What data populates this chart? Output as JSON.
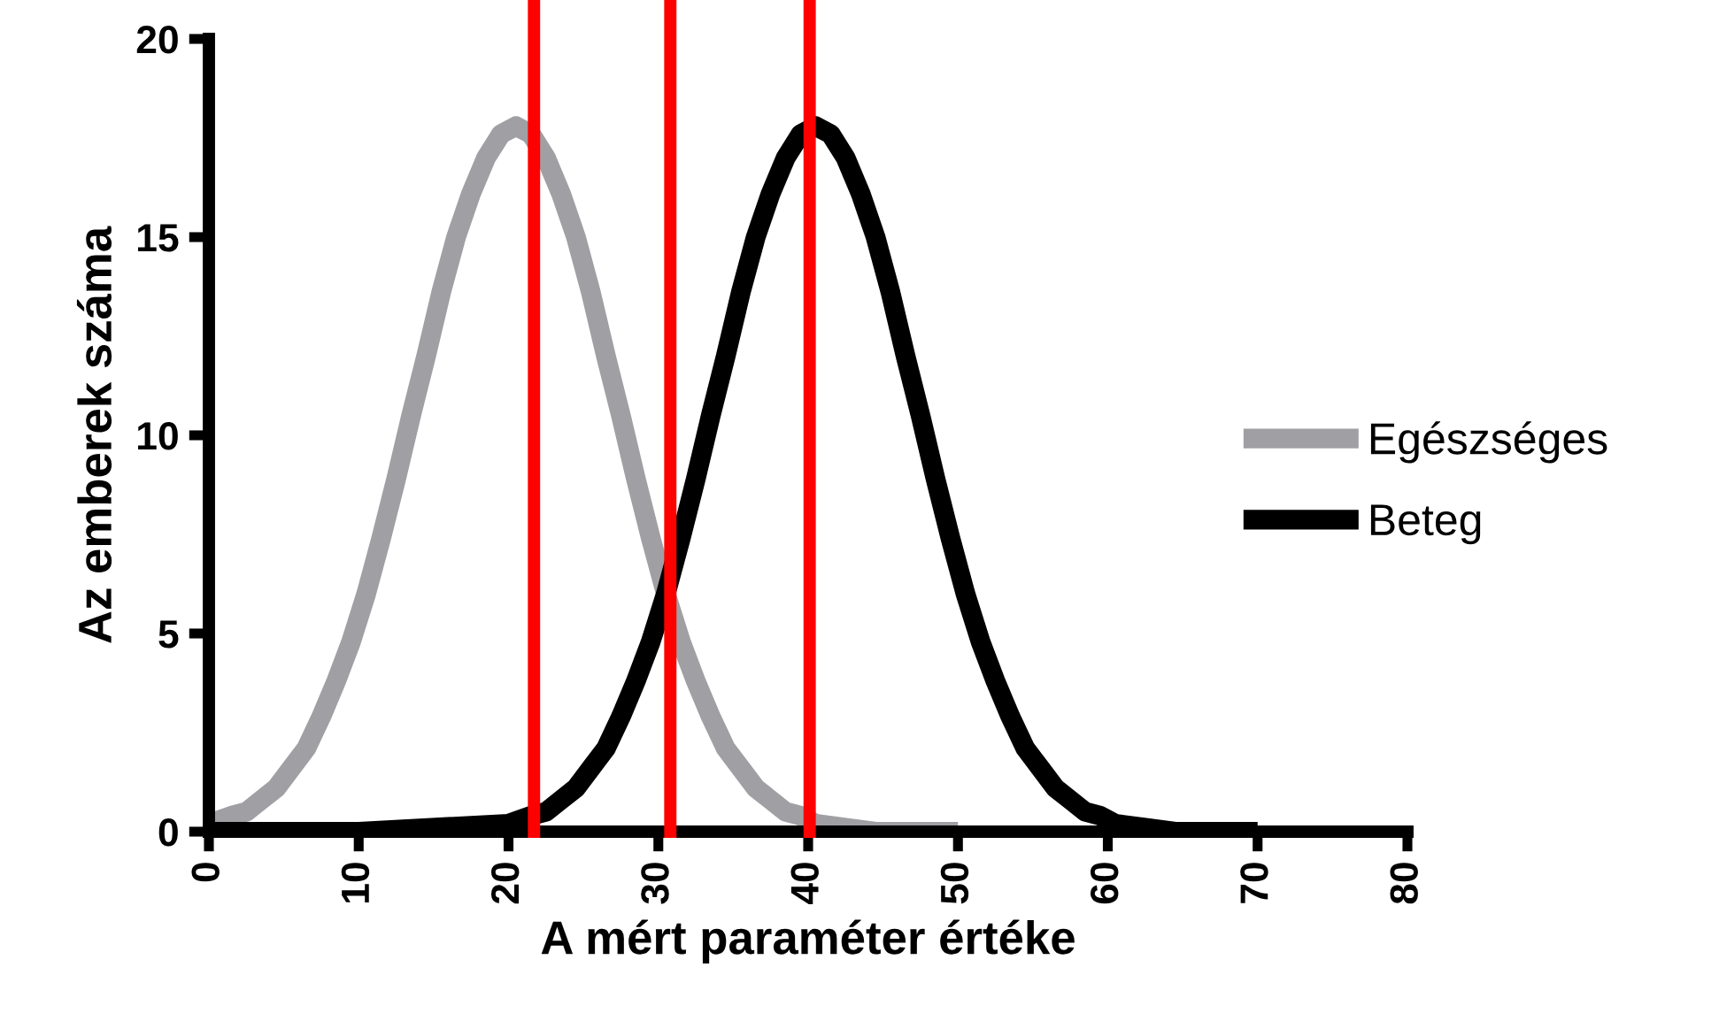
{
  "chart_data": {
    "type": "line",
    "xlabel": "A mért paraméter értéke",
    "ylabel": "Az emberek száma",
    "xlim": [
      0,
      80
    ],
    "xticks": [
      0,
      10,
      20,
      30,
      40,
      50,
      60,
      70,
      80
    ],
    "ylim": [
      0,
      20
    ],
    "yticks": [
      0,
      5,
      10,
      15,
      20
    ],
    "grid": false,
    "legend": "right",
    "marker": "none",
    "line_style": "solid",
    "series": [
      {
        "name": "Egészséges",
        "color": "#a0a0a4",
        "x": [
          0,
          1.5,
          2.5,
          3.5,
          4.5,
          5.5,
          6.5,
          7.5,
          8.5,
          9.5,
          10.5,
          11.5,
          12.5,
          13.5,
          14.5,
          15.5,
          16.5,
          17.5,
          18.5,
          19.5,
          20.5,
          21.5,
          22.5,
          23.5,
          24.5,
          25.5,
          26.5,
          27.5,
          28.5,
          29.5,
          30.5,
          31.5,
          32.5,
          33.5,
          34.5,
          35.5,
          36.5,
          37.5,
          38.5,
          39.5,
          40.5,
          42.5,
          44.5,
          46.5,
          48.5,
          50
        ],
        "values": [
          0.2,
          0.4,
          0.5,
          0.8,
          1.1,
          1.6,
          2.1,
          2.9,
          3.8,
          4.8,
          6.0,
          7.4,
          8.9,
          10.5,
          12.0,
          13.6,
          15.0,
          16.1,
          17.0,
          17.6,
          17.8,
          17.6,
          17.0,
          16.1,
          15.0,
          13.6,
          12.0,
          10.5,
          8.9,
          7.4,
          6.0,
          4.8,
          3.8,
          2.9,
          2.1,
          1.6,
          1.1,
          0.8,
          0.5,
          0.4,
          0.2,
          0.1,
          0,
          0,
          0,
          0
        ]
      },
      {
        "name": "Beteg",
        "color": "#000000",
        "x": [
          0,
          10,
          20,
          21.5,
          22.5,
          23.5,
          24.5,
          25.5,
          26.5,
          27.5,
          28.5,
          29.5,
          30.5,
          31.5,
          32.5,
          33.5,
          34.5,
          35.5,
          36.5,
          37.5,
          38.5,
          39.5,
          40.5,
          41.5,
          42.5,
          43.5,
          44.5,
          45.5,
          46.5,
          47.5,
          48.5,
          49.5,
          50.5,
          51.5,
          52.5,
          53.5,
          54.5,
          55.5,
          56.5,
          57.5,
          58.5,
          59.5,
          60.5,
          62.5,
          64.5,
          66.5,
          68.5,
          70
        ],
        "values": [
          0,
          0,
          0.2,
          0.4,
          0.5,
          0.8,
          1.1,
          1.6,
          2.1,
          2.9,
          3.8,
          4.8,
          6.0,
          7.4,
          8.9,
          10.5,
          12.0,
          13.6,
          15.0,
          16.1,
          17.0,
          17.6,
          17.8,
          17.6,
          17.0,
          16.1,
          15.0,
          13.6,
          12.0,
          10.5,
          8.9,
          7.4,
          6.0,
          4.8,
          3.8,
          2.9,
          2.1,
          1.6,
          1.1,
          0.8,
          0.5,
          0.4,
          0.2,
          0.1,
          0,
          0,
          0,
          0
        ]
      }
    ],
    "ref_lines": [
      {
        "axis": "x",
        "value": 21.7,
        "color": "#ff0000"
      },
      {
        "axis": "x",
        "value": 30.8,
        "color": "#ff0000"
      },
      {
        "axis": "x",
        "value": 40.1,
        "color": "#ff0000"
      }
    ]
  }
}
